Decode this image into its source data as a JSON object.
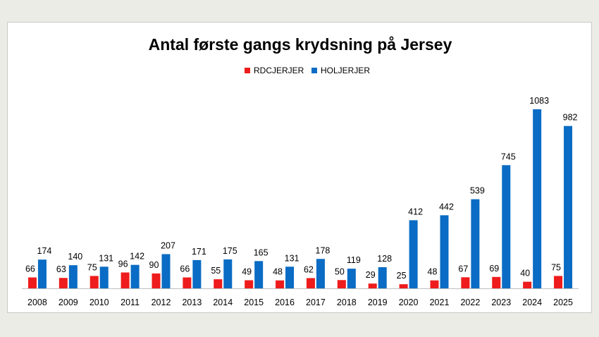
{
  "chart_data": {
    "type": "bar",
    "title": "Antal første gangs krydsning på Jersey",
    "xlabel": "",
    "ylabel": "",
    "ylim": [
      0,
      1200
    ],
    "grid": false,
    "legend_position": "top-center",
    "categories": [
      "2008",
      "2009",
      "2010",
      "2011",
      "2012",
      "2013",
      "2014",
      "2015",
      "2016",
      "2017",
      "2018",
      "2019",
      "2020",
      "2021",
      "2022",
      "2023",
      "2024",
      "2025"
    ],
    "series": [
      {
        "name": "RDCJERJER",
        "color": "#ee1c1c",
        "values": [
          66,
          63,
          75,
          96,
          90,
          66,
          55,
          49,
          48,
          62,
          50,
          29,
          25,
          48,
          67,
          69,
          40,
          75
        ]
      },
      {
        "name": "HOLJERJER",
        "color": "#0a6cc4",
        "values": [
          174,
          140,
          131,
          142,
          207,
          171,
          175,
          165,
          131,
          178,
          119,
          128,
          412,
          442,
          539,
          745,
          1083,
          982
        ]
      }
    ]
  }
}
